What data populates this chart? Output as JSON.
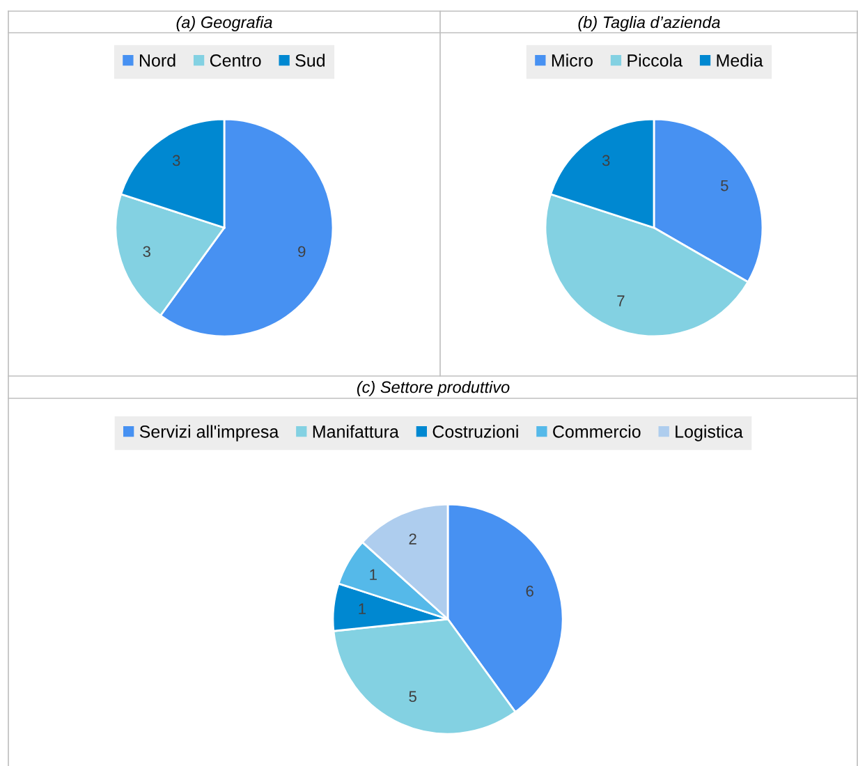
{
  "chart_data": [
    {
      "type": "pie",
      "title": "(a) Geografia",
      "categories": [
        "Nord",
        "Centro",
        "Sud"
      ],
      "values": [
        9,
        3,
        3
      ],
      "colors": [
        "#4791f2",
        "#83d1e2",
        "#0088d1"
      ],
      "data_labels": true,
      "legend": "top"
    },
    {
      "type": "pie",
      "title": "(b) Taglia d’azienda",
      "categories": [
        "Micro",
        "Piccola",
        "Media"
      ],
      "values": [
        5,
        7,
        3
      ],
      "colors": [
        "#4791f2",
        "#83d1e2",
        "#0088d1"
      ],
      "data_labels": true,
      "legend": "top"
    },
    {
      "type": "pie",
      "title": "(c) Settore produttivo",
      "categories": [
        "Servizi all'impresa",
        "Manifattura",
        "Costruzioni",
        "Commercio",
        "Logistica"
      ],
      "values": [
        6,
        5,
        1,
        1,
        2
      ],
      "colors": [
        "#4791f2",
        "#83d1e2",
        "#0088d1",
        "#55b9e9",
        "#aecdee"
      ],
      "data_labels": true,
      "legend": "top"
    }
  ]
}
